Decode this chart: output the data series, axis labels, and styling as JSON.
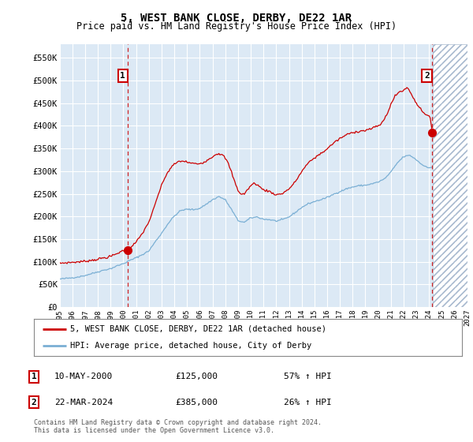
{
  "title": "5, WEST BANK CLOSE, DERBY, DE22 1AR",
  "subtitle": "Price paid vs. HM Land Registry's House Price Index (HPI)",
  "ylim": [
    0,
    580000
  ],
  "yticks": [
    0,
    50000,
    100000,
    150000,
    200000,
    250000,
    300000,
    350000,
    400000,
    450000,
    500000,
    550000
  ],
  "ytick_labels": [
    "£0",
    "£50K",
    "£100K",
    "£150K",
    "£200K",
    "£250K",
    "£300K",
    "£350K",
    "£400K",
    "£450K",
    "£500K",
    "£550K"
  ],
  "xmin_year": 1995.0,
  "xmax_year": 2027.0,
  "xticks": [
    1995,
    1996,
    1997,
    1998,
    1999,
    2000,
    2001,
    2002,
    2003,
    2004,
    2005,
    2006,
    2007,
    2008,
    2009,
    2010,
    2011,
    2012,
    2013,
    2014,
    2015,
    2016,
    2017,
    2018,
    2019,
    2020,
    2021,
    2022,
    2023,
    2024,
    2025,
    2026,
    2027
  ],
  "plot_bg_color": "#dce9f5",
  "hatch_color": "#aabbd0",
  "hatch_start": 2024.3,
  "grid_color": "#ffffff",
  "red_line_color": "#cc0000",
  "blue_line_color": "#7aafd4",
  "sale1_year": 2000.36,
  "sale1_price": 125000,
  "sale2_year": 2024.22,
  "sale2_price": 385000,
  "legend_label_red": "5, WEST BANK CLOSE, DERBY, DE22 1AR (detached house)",
  "legend_label_blue": "HPI: Average price, detached house, City of Derby",
  "note1_date": "10-MAY-2000",
  "note1_price": "£125,000",
  "note1_hpi": "57% ↑ HPI",
  "note2_date": "22-MAR-2024",
  "note2_price": "£385,000",
  "note2_hpi": "26% ↑ HPI",
  "footer": "Contains HM Land Registry data © Crown copyright and database right 2024.\nThis data is licensed under the Open Government Licence v3.0."
}
